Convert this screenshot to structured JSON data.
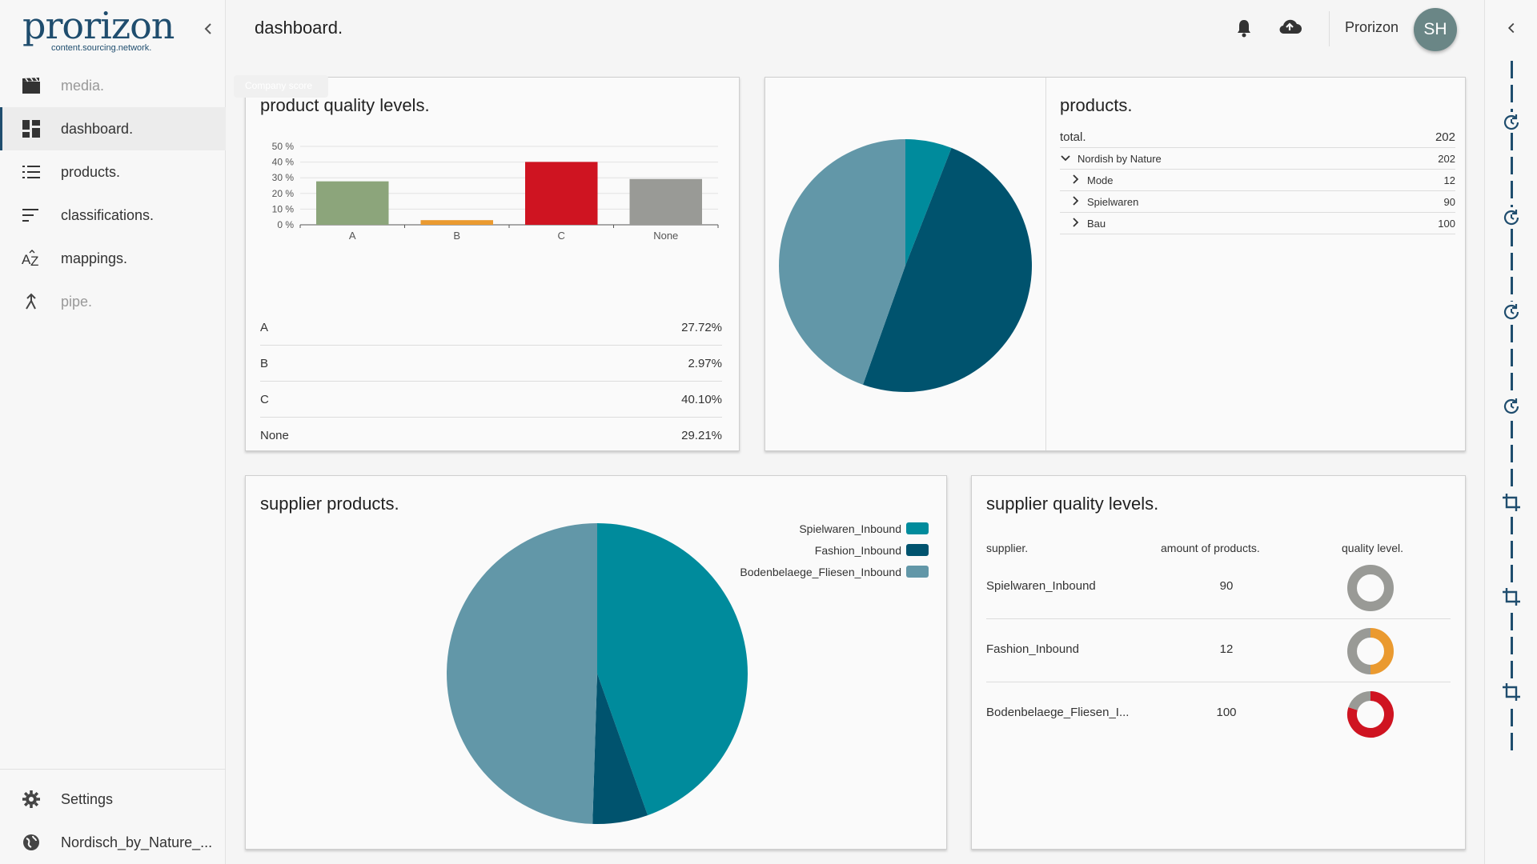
{
  "sidebar": {
    "logo": "prorizon",
    "tagline": "content.sourcing.network.",
    "items": [
      {
        "label": "media.",
        "icon": "clapperboard-icon"
      },
      {
        "label": "dashboard.",
        "icon": "dashboard-icon"
      },
      {
        "label": "products.",
        "icon": "list-icon"
      },
      {
        "label": "classifications.",
        "icon": "sort-lines-icon"
      },
      {
        "label": "mappings.",
        "icon": "az-sort-icon"
      },
      {
        "label": "pipe.",
        "icon": "merge-arrow-icon"
      }
    ],
    "active": "dashboard.",
    "bottom": [
      {
        "label": "Settings",
        "icon": "gear-icon"
      },
      {
        "label": "Nordisch_by_Nature_...",
        "icon": "globe-icon"
      }
    ]
  },
  "header": {
    "title": "dashboard.",
    "user": "Prorizon",
    "avatar": "SH"
  },
  "quality": {
    "title": "product quality levels.",
    "tooltip": "Company score",
    "rows": [
      {
        "label": "A",
        "value": "27.72%"
      },
      {
        "label": "B",
        "value": "2.97%"
      },
      {
        "label": "C",
        "value": "40.10%"
      },
      {
        "label": "None",
        "value": "29.21%"
      }
    ]
  },
  "products": {
    "title": "products.",
    "total_label": "total.",
    "total_value": "202",
    "tree": [
      {
        "label": "Nordish by Nature",
        "value": "202",
        "expanded": true
      },
      {
        "label": "Mode",
        "value": "12"
      },
      {
        "label": "Spielwaren",
        "value": "90"
      },
      {
        "label": "Bau",
        "value": "100"
      }
    ]
  },
  "supplier_products": {
    "title": "supplier products.",
    "legend": [
      {
        "label": "Spielwaren_Inbound",
        "color": "#008b9c"
      },
      {
        "label": "Fashion_Inbound",
        "color": "#00536e"
      },
      {
        "label": "Bodenbelaege_Fliesen_Inbound",
        "color": "#6297a8"
      }
    ]
  },
  "supplier_quality": {
    "title": "supplier quality levels.",
    "headers": {
      "supplier": "supplier.",
      "amount": "amount of products.",
      "quality": "quality level."
    },
    "rows": [
      {
        "name": "Spielwaren_Inbound",
        "amount": "90"
      },
      {
        "name": "Fashion_Inbound",
        "amount": "12"
      },
      {
        "name": "Bodenbelaege_Fliesen_I...",
        "amount": "100"
      }
    ]
  },
  "colors": {
    "A": "#8ca57b",
    "B": "#ea9a30",
    "C": "#cf1421",
    "None": "#999a96",
    "brand": "#1f4d6e"
  },
  "chart_data": [
    {
      "type": "bar",
      "categories": [
        "A",
        "B",
        "C",
        "None"
      ],
      "values": [
        27.72,
        2.97,
        40.1,
        29.21
      ],
      "title": "",
      "ylim": [
        0,
        50
      ],
      "yticks": [
        "0 %",
        "10 %",
        "20 %",
        "30 %",
        "40 %",
        "50 %"
      ],
      "grid": true
    },
    {
      "type": "pie",
      "labels": [
        "Mode",
        "Bau",
        "Spielwaren"
      ],
      "values": [
        12,
        100,
        90
      ],
      "colors": [
        "#008b9c",
        "#00536e",
        "#6297a8"
      ]
    },
    {
      "type": "pie",
      "labels": [
        "Spielwaren_Inbound",
        "Fashion_Inbound",
        "Bodenbelaege_Fliesen_Inbound"
      ],
      "values": [
        90,
        12,
        100
      ],
      "colors": [
        "#008b9c",
        "#00536e",
        "#6297a8"
      ],
      "legend": "top-right"
    },
    {
      "type": "pie",
      "subtype": "donut",
      "series": [
        {
          "name": "Spielwaren_Inbound",
          "values": [
            {
              "level": "None",
              "share": 1.0
            }
          ]
        },
        {
          "name": "Fashion_Inbound",
          "values": [
            {
              "level": "B",
              "share": 0.5
            },
            {
              "level": "None",
              "share": 0.5
            }
          ]
        },
        {
          "name": "Bodenbelaege_Fliesen_Inbound",
          "values": [
            {
              "level": "C",
              "share": 0.8
            },
            {
              "level": "None",
              "share": 0.2
            }
          ]
        }
      ]
    }
  ]
}
